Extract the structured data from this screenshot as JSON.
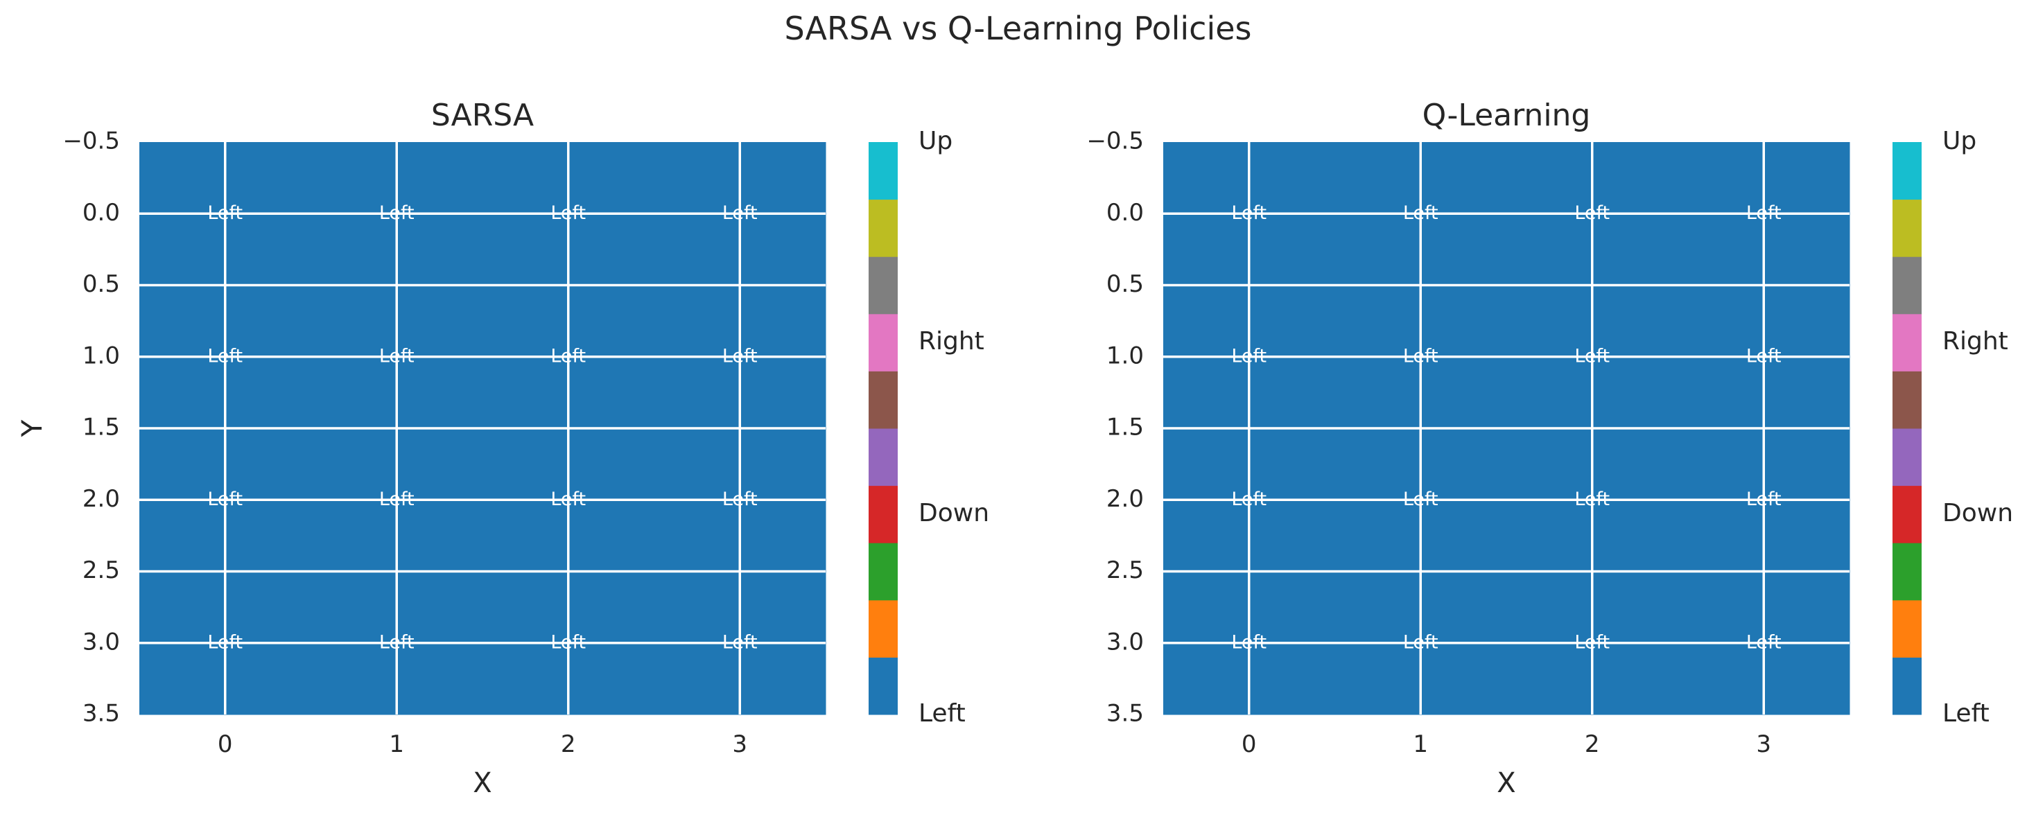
{
  "figure": {
    "suptitle": "SARSA vs Q-Learning Policies"
  },
  "colormap": {
    "colors": [
      "#1f77b4",
      "#ff7f0e",
      "#2ca02c",
      "#d62728",
      "#9467bd",
      "#8c564b",
      "#e377c2",
      "#7f7f7f",
      "#bcbd22",
      "#17becf"
    ],
    "tick_labels": [
      "Left",
      "Down",
      "Right",
      "Up"
    ],
    "tick_values": [
      0,
      3,
      6,
      9.5
    ],
    "range": [
      -0.5,
      9.5
    ]
  },
  "chart_data": [
    {
      "type": "heatmap",
      "title": "SARSA",
      "xlabel": "X",
      "ylabel": "Y",
      "xlim": [
        -0.5,
        3.5
      ],
      "ylim": [
        3.5,
        -0.5
      ],
      "x_ticks": [
        "0",
        "1",
        "2",
        "3"
      ],
      "y_ticks": [
        "−0.5",
        "0.0",
        "0.5",
        "1.0",
        "1.5",
        "2.0",
        "2.5",
        "3.0",
        "3.5"
      ],
      "grid": true,
      "fill_color": "#1f77b4",
      "cells": [
        [
          "Left",
          "Left",
          "Left",
          "Left"
        ],
        [
          "Left",
          "Left",
          "Left",
          "Left"
        ],
        [
          "Left",
          "Left",
          "Left",
          "Left"
        ],
        [
          "Left",
          "Left",
          "Left",
          "Left"
        ]
      ]
    },
    {
      "type": "heatmap",
      "title": "Q-Learning",
      "xlabel": "X",
      "ylabel": "Y",
      "xlim": [
        -0.5,
        3.5
      ],
      "ylim": [
        3.5,
        -0.5
      ],
      "x_ticks": [
        "0",
        "1",
        "2",
        "3"
      ],
      "y_ticks": [
        "−0.5",
        "0.0",
        "0.5",
        "1.0",
        "1.5",
        "2.0",
        "2.5",
        "3.0",
        "3.5"
      ],
      "grid": true,
      "fill_color": "#1f77b4",
      "cells": [
        [
          "Left",
          "Left",
          "Left",
          "Left"
        ],
        [
          "Left",
          "Left",
          "Left",
          "Left"
        ],
        [
          "Left",
          "Left",
          "Left",
          "Left"
        ],
        [
          "Left",
          "Left",
          "Left",
          "Left"
        ]
      ]
    }
  ]
}
